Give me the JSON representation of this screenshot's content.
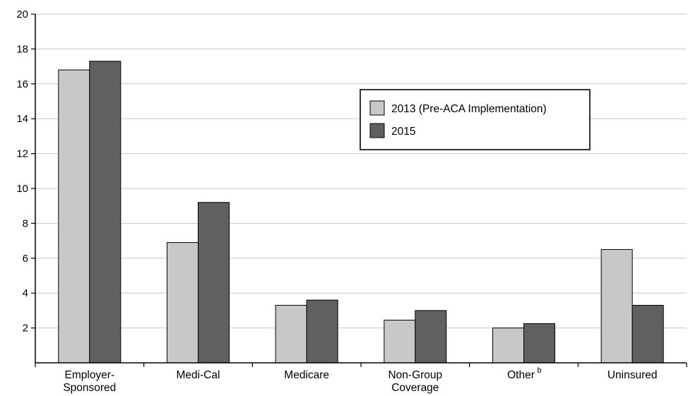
{
  "chart_data": {
    "type": "bar",
    "categories": [
      "Employer-Sponsored",
      "Medi-Cal",
      "Medicare",
      "Non-Group Coverage",
      "Other",
      "Uninsured"
    ],
    "category_label_lines": [
      [
        "Employer-",
        "Sponsored"
      ],
      [
        "Medi-Cal"
      ],
      [
        "Medicare"
      ],
      [
        "Non-Group",
        "Coverage"
      ],
      [
        "Other"
      ],
      [
        "Uninsured"
      ]
    ],
    "category_superscripts": [
      "",
      "",
      "",
      "",
      "b",
      ""
    ],
    "series": [
      {
        "name": "2013 (Pre-ACA Implementation)",
        "values": [
          16.8,
          6.9,
          3.3,
          2.45,
          2.0,
          6.5
        ],
        "color": "#c8c8c8"
      },
      {
        "name": "2015",
        "values": [
          17.3,
          9.2,
          3.6,
          3.0,
          2.25,
          3.3
        ],
        "color": "#606060"
      }
    ],
    "ylim": [
      0,
      20
    ],
    "yticks": [
      2,
      4,
      6,
      8,
      10,
      12,
      14,
      16,
      18,
      20
    ],
    "grid": true,
    "legend_position": "top-right",
    "xlabel": "",
    "ylabel": "",
    "title": ""
  }
}
